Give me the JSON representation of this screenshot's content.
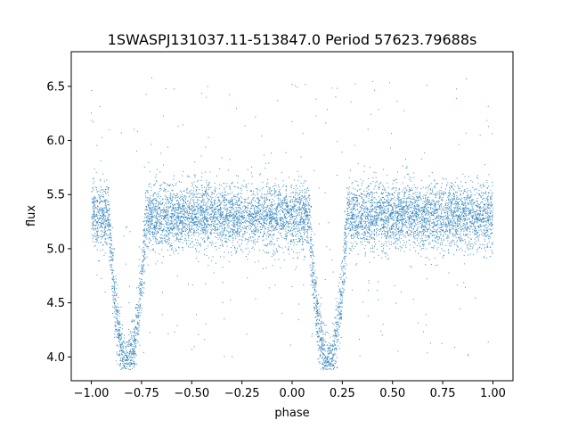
{
  "chart_data": {
    "type": "scatter",
    "title": "1SWASPJ131037.11-513847.0 Period 57623.79688s",
    "xlabel": "phase",
    "ylabel": "flux",
    "xlim": [
      -1.1,
      1.1
    ],
    "ylim": [
      3.78,
      6.82
    ],
    "xticks": [
      -1.0,
      -0.75,
      -0.5,
      -0.25,
      0.0,
      0.25,
      0.5,
      0.75,
      1.0
    ],
    "xtick_labels": [
      "−1.00",
      "−0.75",
      "−0.50",
      "−0.25",
      "0.00",
      "0.25",
      "0.50",
      "0.75",
      "1.00"
    ],
    "yticks": [
      4.0,
      4.5,
      5.0,
      5.5,
      6.0,
      6.5
    ],
    "ytick_labels": [
      "4.0",
      "4.5",
      "5.0",
      "5.5",
      "6.0",
      "6.5"
    ],
    "grid": false,
    "legend": "none",
    "marker_color": "#1f77b4",
    "series": [
      {
        "phase_range": [
          -1.0,
          1.0
        ],
        "baseline_flux": 5.3,
        "baseline_scatter": 0.15,
        "eclipses": [
          {
            "phase_center": -0.82,
            "min_flux": 3.93,
            "width": 0.09
          },
          {
            "phase_center": 0.18,
            "min_flux": 3.93,
            "width": 0.09
          }
        ],
        "points": [
          [
            -0.98,
            5.3
          ],
          [
            -0.95,
            5.22
          ],
          [
            -0.92,
            5.35
          ],
          [
            -0.9,
            5.1
          ],
          [
            -0.88,
            4.6
          ],
          [
            -0.86,
            4.2
          ],
          [
            -0.84,
            3.98
          ],
          [
            -0.83,
            3.94
          ],
          [
            -0.81,
            3.95
          ],
          [
            -0.8,
            4.1
          ],
          [
            -0.78,
            4.45
          ],
          [
            -0.76,
            4.9
          ],
          [
            -0.74,
            5.25
          ],
          [
            -0.7,
            5.32
          ],
          [
            -0.65,
            5.28
          ],
          [
            -0.6,
            5.36
          ],
          [
            -0.55,
            5.3
          ],
          [
            -0.5,
            5.27
          ],
          [
            -0.45,
            5.33
          ],
          [
            -0.4,
            5.29
          ],
          [
            -0.35,
            5.31
          ],
          [
            -0.3,
            5.26
          ],
          [
            -0.25,
            5.34
          ],
          [
            -0.2,
            5.3
          ],
          [
            -0.15,
            5.28
          ],
          [
            -0.1,
            5.33
          ],
          [
            -0.05,
            5.29
          ],
          [
            0.0,
            5.3
          ],
          [
            0.05,
            5.25
          ],
          [
            0.08,
            5.1
          ],
          [
            0.1,
            4.7
          ],
          [
            0.12,
            4.3
          ],
          [
            0.14,
            4.02
          ],
          [
            0.16,
            3.95
          ],
          [
            0.18,
            3.93
          ],
          [
            0.2,
            3.97
          ],
          [
            0.22,
            4.2
          ],
          [
            0.24,
            4.6
          ],
          [
            0.26,
            5.05
          ],
          [
            0.3,
            5.28
          ],
          [
            0.35,
            5.32
          ],
          [
            0.4,
            5.3
          ],
          [
            0.45,
            5.27
          ],
          [
            0.5,
            5.33
          ],
          [
            0.55,
            5.29
          ],
          [
            0.6,
            5.31
          ],
          [
            0.65,
            5.26
          ],
          [
            0.7,
            5.34
          ],
          [
            0.75,
            5.3
          ],
          [
            0.8,
            5.28
          ],
          [
            0.85,
            5.33
          ],
          [
            0.9,
            5.29
          ],
          [
            0.95,
            5.31
          ],
          [
            0.98,
            5.27
          ]
        ]
      }
    ]
  }
}
